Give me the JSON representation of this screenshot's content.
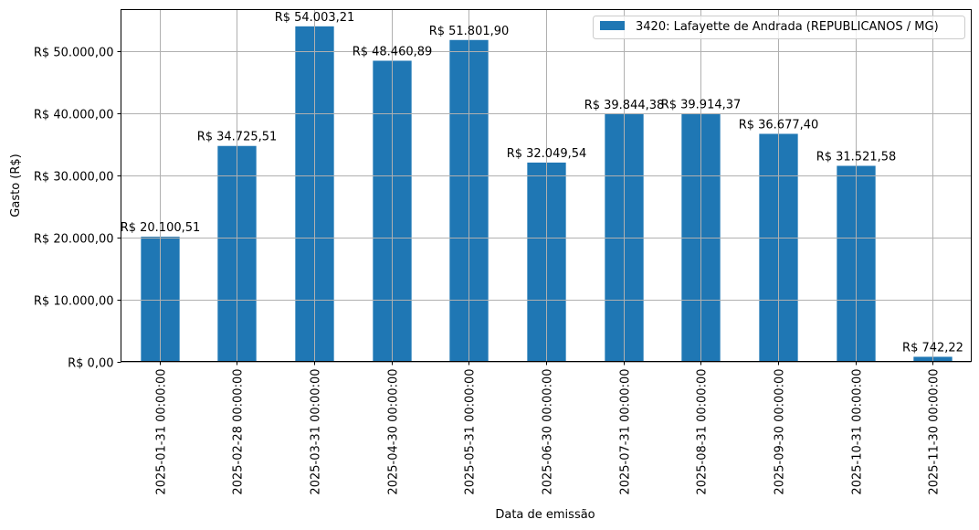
{
  "chart_data": {
    "type": "bar",
    "title": "",
    "xlabel": "Data de emissão",
    "ylabel": "Gasto (R$)",
    "ylim": [
      0,
      56703
    ],
    "grid": true,
    "legend_position": "upper right",
    "bar_color": "#1f77b4",
    "categories": [
      "2025-01-31 00:00:00",
      "2025-02-28 00:00:00",
      "2025-03-31 00:00:00",
      "2025-04-30 00:00:00",
      "2025-05-31 00:00:00",
      "2025-06-30 00:00:00",
      "2025-07-31 00:00:00",
      "2025-08-31 00:00:00",
      "2025-09-30 00:00:00",
      "2025-10-31 00:00:00",
      "2025-11-30 00:00:00"
    ],
    "series": [
      {
        "name": "3420: Lafayette de Andrada (REPUBLICANOS / MG)",
        "values": [
          20100.51,
          34725.51,
          54003.21,
          48460.89,
          51801.9,
          32049.54,
          39844.38,
          39914.37,
          36677.4,
          31521.58,
          742.22
        ],
        "labels": [
          "R$ 20.100,51",
          "R$ 34.725,51",
          "R$ 54.003,21",
          "R$ 48.460,89",
          "R$ 51.801,90",
          "R$ 32.049,54",
          "R$ 39.844,38",
          "R$ 39.914,37",
          "R$ 36.677,40",
          "R$ 31.521,58",
          "R$ 742,22"
        ]
      }
    ],
    "yticks": [
      0,
      10000,
      20000,
      30000,
      40000,
      50000
    ],
    "ytick_labels": [
      "R$ 0,00",
      "R$ 10.000,00",
      "R$ 20.000,00",
      "R$ 30.000,00",
      "R$ 40.000,00",
      "R$ 50.000,00"
    ]
  },
  "legend": {
    "label": "3420: Lafayette de Andrada (REPUBLICANOS / MG)"
  },
  "axes": {
    "xlabel": "Data de emissão",
    "ylabel": "Gasto (R$)"
  }
}
